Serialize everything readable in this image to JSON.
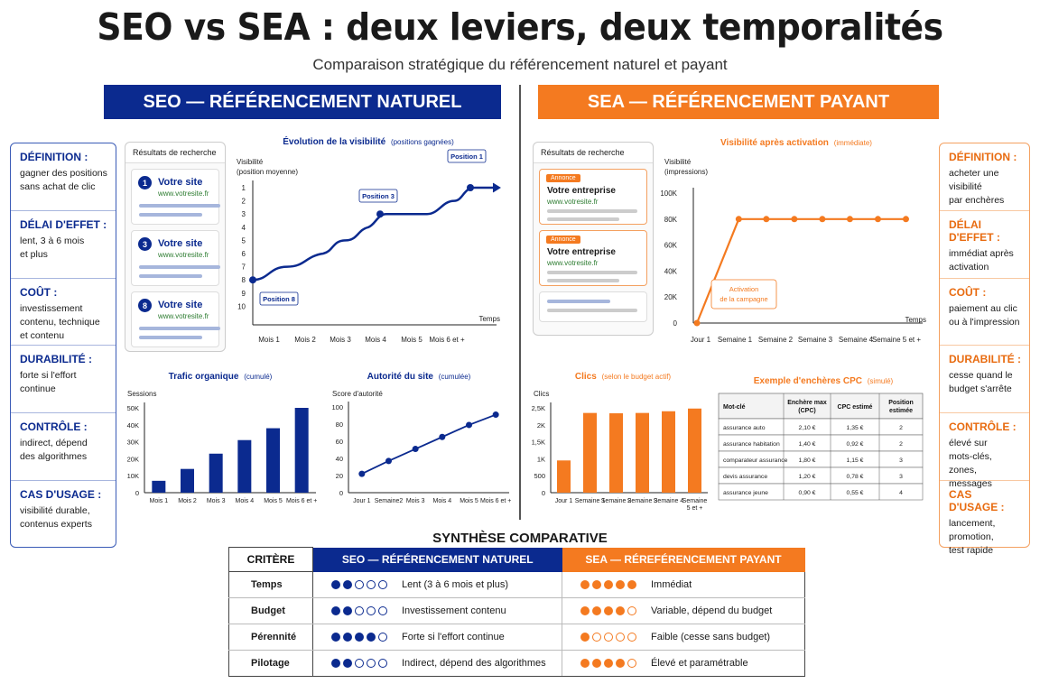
{
  "header": {
    "title": "SEO vs SEA : deux leviers, deux temporalités",
    "subtitle": "Comparaison stratégique du référencement naturel et payant"
  },
  "seo": {
    "band": "SEO — RÉFÉRENCEMENT NATUREL",
    "side": [
      {
        "title": "DÉFINITION :",
        "text": [
          "gagner des positions",
          "sans achat de clic"
        ]
      },
      {
        "title": "DÉLAI D'EFFET :",
        "text": [
          "lent, 3 à 6 mois",
          "et plus"
        ]
      },
      {
        "title": "COÛT :",
        "text": [
          "investissement",
          "contenu, technique",
          "et contenu"
        ]
      },
      {
        "title": "DURABILITÉ :",
        "text": [
          "forte si l'effort",
          "continue"
        ]
      },
      {
        "title": "CONTRÔLE :",
        "text": [
          "indirect, dépend",
          "des algorithmes"
        ]
      },
      {
        "title": "CAS D'USAGE :",
        "text": [
          "visibilité durable,",
          "contenus experts"
        ]
      }
    ],
    "serp": {
      "header": "Résultats de recherche",
      "results": [
        {
          "num": "1",
          "title": "Votre site",
          "url": "www.votresite.fr"
        },
        {
          "num": "3",
          "title": "Votre site",
          "url": "www.votresite.fr"
        },
        {
          "num": "8",
          "title": "Votre site",
          "url": "www.votresite.fr"
        }
      ]
    }
  },
  "sea": {
    "band": "SEA — RÉFÉRENCEMENT PAYANT",
    "side": [
      {
        "title": "DÉFINITION :",
        "text": [
          "acheter une visibilité",
          "par enchères"
        ]
      },
      {
        "title": "DÉLAI D'EFFET :",
        "text": [
          "immédiat après",
          "activation"
        ]
      },
      {
        "title": "COÛT :",
        "text": [
          "paiement au clic",
          "ou à l'impression"
        ]
      },
      {
        "title": "DURABILITÉ :",
        "text": [
          "cesse quand le",
          "budget s'arrête"
        ]
      },
      {
        "title": "CONTRÔLE :",
        "text": [
          "élevé sur",
          "mots-clés, zones,",
          "messages"
        ]
      },
      {
        "title": "CAS D'USAGE :",
        "text": [
          "lancement,",
          "promotion,",
          "test rapide"
        ]
      }
    ],
    "serp": {
      "header": "Résultats de recherche",
      "ads": [
        {
          "badge": "Annonce",
          "title": "Votre entreprise",
          "url": "www.votresite.fr"
        },
        {
          "badge": "Annonce",
          "title": "Votre entreprise",
          "url": "www.votresite.fr"
        }
      ]
    }
  },
  "chart_data": [
    {
      "id": "seo-visibility",
      "type": "line",
      "title": "Évolution de la visibilité",
      "title_note": "(positions gagnées)",
      "ylabel": [
        "Visibilité",
        "(position moyenne)"
      ],
      "xlabel": "Temps",
      "categories": [
        "Mois 1",
        "Mois 2",
        "Mois 3",
        "Mois 4",
        "Mois 5",
        "Mois 6 et +"
      ],
      "yticks": [
        "1",
        "2",
        "3",
        "4",
        "5",
        "6",
        "7",
        "8",
        "9",
        "10"
      ],
      "ylim": [
        10,
        1
      ],
      "annotations": [
        {
          "label": "Position 8",
          "at": "Mois 1",
          "y": 8
        },
        {
          "label": "Position 3",
          "at": "Mois 4",
          "y": 3
        },
        {
          "label": "Position 1",
          "at": "Mois 6 et +",
          "y": 1
        }
      ]
    },
    {
      "id": "sea-visibility",
      "type": "line",
      "title": "Visibilité après activation",
      "title_note": "(immédiate)",
      "ylabel": [
        "Visibilité",
        "(impressions)"
      ],
      "xlabel": "Temps",
      "categories": [
        "Jour 1",
        "Semaine 1",
        "Semaine 2",
        "Semaine 3",
        "Semaine 4",
        "Semaine 5 et +"
      ],
      "yticks": [
        "0",
        "20K",
        "40K",
        "60K",
        "80K",
        "100K"
      ],
      "ylim": [
        0,
        100000
      ],
      "x": [
        0,
        1,
        1.66,
        2.33,
        3.0,
        3.66,
        4.33,
        5.0
      ],
      "y": [
        0,
        80000,
        80000,
        80000,
        80000,
        80000,
        80000,
        80000
      ],
      "annotations": [
        {
          "label": [
            "Activation",
            "de la campagne"
          ],
          "at": "Jour 1"
        }
      ],
      "color": "#f47a20"
    },
    {
      "id": "seo-traffic",
      "type": "bar",
      "title": "Trafic organique",
      "title_note": "(cumulé)",
      "ylabel": "Sessions",
      "categories": [
        "Mois 1",
        "Mois 2",
        "Mois 3",
        "Mois 4",
        "Mois 5",
        "Mois 6 et +"
      ],
      "values": [
        7000,
        14000,
        23000,
        31000,
        38000,
        50000
      ],
      "yticks": [
        "0",
        "10K",
        "20K",
        "30K",
        "40K",
        "50K"
      ],
      "ylim": [
        0,
        50000
      ],
      "color": "#0b2a8f"
    },
    {
      "id": "seo-authority",
      "type": "line",
      "title": "Autorité du site",
      "title_note": "(cumulée)",
      "ylabel": "Score d'autorité",
      "categories": [
        "Jour 1",
        "Semaine2",
        "Mois 3",
        "Mois 4",
        "Mois 5",
        "Mois 6 et +"
      ],
      "values": [
        22,
        37,
        51,
        65,
        79,
        91
      ],
      "yticks": [
        "0",
        "20",
        "40",
        "60",
        "80",
        "100"
      ],
      "ylim": [
        0,
        100
      ],
      "color": "#0b2a8f"
    },
    {
      "id": "sea-clicks",
      "type": "bar",
      "title": "Clics",
      "title_note": "(selon le budget actif)",
      "ylabel": "Clics",
      "categories": [
        "Jour 1",
        "Semaine 1",
        "Semaine 2",
        "Semaine 3",
        "Semaine 4",
        "Semaine 5 et +"
      ],
      "values": [
        950,
        2350,
        2340,
        2350,
        2400,
        2480
      ],
      "yticks": [
        "0",
        "500",
        "1K",
        "1,5K",
        "2K",
        "2,5K"
      ],
      "ylim": [
        0,
        2500
      ],
      "color": "#f47a20"
    },
    {
      "id": "sea-cpc",
      "type": "table",
      "title": "Exemple d'enchères CPC",
      "title_note": "(simulé)",
      "columns": [
        "Mot-clé",
        "Enchère max (CPC)",
        "CPC estimé",
        "Position estimée"
      ],
      "rows": [
        [
          "assurance auto",
          "2,10 €",
          "1,35 €",
          "2"
        ],
        [
          "assurance habitation",
          "1,40 €",
          "0,92 €",
          "2"
        ],
        [
          "comparateur assurance",
          "1,80 €",
          "1,15 €",
          "3"
        ],
        [
          "devis assurance",
          "1,20 €",
          "0,78 €",
          "3"
        ],
        [
          "assurance jeune",
          "0,90 €",
          "0,55 €",
          "4"
        ]
      ]
    }
  ],
  "synthesis": {
    "title": "SYNTHÈSE COMPARATIVE",
    "headers": [
      "CRITÈRE",
      "SEO — RÉFÉRENCEMENT NATUREL",
      "SEA — RÉREFÉRENCEMENT PAYANT"
    ],
    "rows": [
      {
        "criterion": "Temps",
        "seo_score": 2,
        "seo_text": "Lent (3 à 6 mois et plus)",
        "sea_score": 5,
        "sea_text": "Immédiat"
      },
      {
        "criterion": "Budget",
        "seo_score": 2,
        "seo_text": "Investissement contenu",
        "sea_score": 4,
        "sea_text": "Variable, dépend du budget"
      },
      {
        "criterion": "Pérennité",
        "seo_score": 4,
        "seo_text": "Forte si l'effort continue",
        "sea_score": 1,
        "sea_text": "Faible (cesse sans budget)"
      },
      {
        "criterion": "Pilotage",
        "seo_score": 2,
        "seo_text": "Indirect, dépend des algorithmes",
        "sea_score": 4,
        "sea_text": "Élevé et paramétrable"
      }
    ],
    "max_score": 5,
    "colors": {
      "seo": "#0b2a8f",
      "sea": "#f47a20"
    }
  }
}
